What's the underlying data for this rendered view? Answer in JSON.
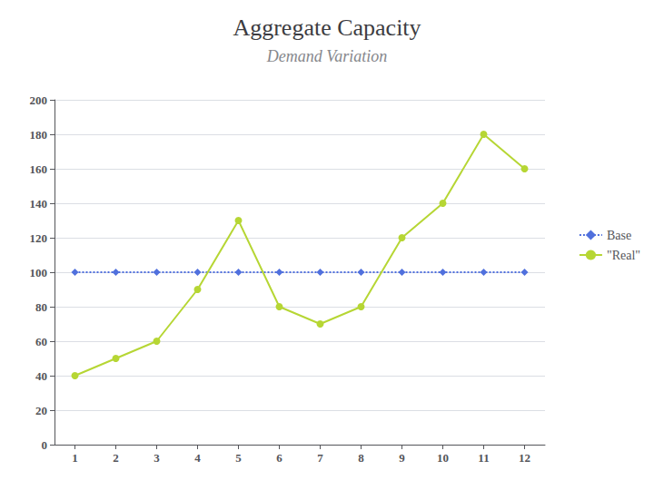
{
  "chart_data": {
    "type": "line",
    "title": "Aggregate Capacity",
    "subtitle": "Demand Variation",
    "x": [
      1,
      2,
      3,
      4,
      5,
      6,
      7,
      8,
      9,
      10,
      11,
      12
    ],
    "series": [
      {
        "name": "Base",
        "values": [
          100,
          100,
          100,
          100,
          100,
          100,
          100,
          100,
          100,
          100,
          100,
          100
        ],
        "marker": "diamond",
        "line_style": "dotted"
      },
      {
        "name": "\"Real\"",
        "values": [
          40,
          50,
          60,
          90,
          130,
          80,
          70,
          80,
          120,
          140,
          180,
          160
        ],
        "marker": "circle",
        "line_style": "solid"
      }
    ],
    "xlim": [
      0.5,
      12.5
    ],
    "xticks": [
      1,
      2,
      3,
      4,
      5,
      6,
      7,
      8,
      9,
      10,
      11,
      12
    ],
    "ylim": [
      0,
      200
    ],
    "yticks": [
      0,
      20,
      40,
      60,
      80,
      100,
      120,
      140,
      160,
      180,
      200
    ],
    "grid": true,
    "legend": "right"
  }
}
